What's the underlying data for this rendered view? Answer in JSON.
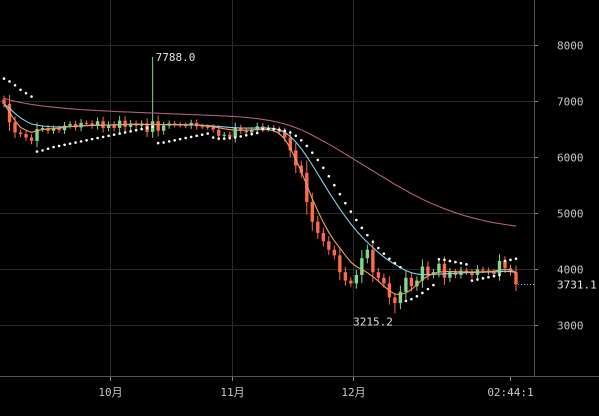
{
  "chart_data": {
    "type": "candlestick",
    "x_tick_labels": [
      "10月",
      "11月",
      "12月",
      "02:44:1"
    ],
    "y_ticks": [
      3000,
      4000,
      5000,
      6000,
      7000,
      8000
    ],
    "ylim": [
      2100,
      8800
    ],
    "annotations": {
      "high_label": "7788.0",
      "low_label": "3215.2",
      "last_price_label": "3731.1"
    },
    "last_price": 3731.1,
    "high": {
      "index": 27,
      "value": 7788.0
    },
    "low": {
      "index": 71,
      "value": 3215.2
    },
    "colors": {
      "up": "#7fd98a",
      "down": "#ff6a4d",
      "ma_fast": "#f0a060",
      "ma_mid": "#7fd6e8",
      "ma_slow": "#b0607a",
      "sar": "#ffffff",
      "grid": "#2a2a2a",
      "axis_text": "#c8c8c8"
    },
    "close_series": [
      6950,
      6620,
      6440,
      6410,
      6350,
      6290,
      6500,
      6520,
      6470,
      6510,
      6480,
      6560,
      6590,
      6530,
      6610,
      6600,
      6560,
      6640,
      6520,
      6580,
      6520,
      6650,
      6540,
      6600,
      6560,
      6600,
      6450,
      6640,
      6470,
      6560,
      6600,
      6580,
      6570,
      6560,
      6610,
      6550,
      6540,
      6530,
      6490,
      6380,
      6400,
      6360,
      6520,
      6470,
      6440,
      6480,
      6550,
      6500,
      6520,
      6490,
      6450,
      6350,
      6120,
      5850,
      5720,
      5200,
      4850,
      4650,
      4500,
      4350,
      4250,
      3950,
      3800,
      3750,
      3900,
      4200,
      4350,
      3950,
      3850,
      3750,
      3500,
      3400,
      3600,
      3850,
      3700,
      3800,
      4050,
      3900,
      3950,
      4100,
      3850,
      3950,
      3900,
      3980,
      3950,
      3900,
      4000,
      3980,
      3950,
      3920,
      4150,
      4020,
      3950,
      3731.1
    ],
    "ma_fast": [
      6950,
      6800,
      6650,
      6530,
      6480,
      6440,
      6470,
      6490,
      6500,
      6510,
      6515,
      6530,
      6545,
      6550,
      6560,
      6565,
      6568,
      6570,
      6572,
      6574,
      6576,
      6580,
      6582,
      6585,
      6586,
      6585,
      6580,
      6585,
      6580,
      6578,
      6578,
      6580,
      6580,
      6578,
      6576,
      6570,
      6562,
      6552,
      6540,
      6525,
      6505,
      6490,
      6480,
      6480,
      6480,
      6485,
      6490,
      6495,
      6490,
      6470,
      6420,
      6320,
      6160,
      5960,
      5740,
      5500,
      5260,
      5040,
      4840,
      4660,
      4510,
      4380,
      4250,
      4130,
      4050,
      4000,
      3940,
      3870,
      3790,
      3700,
      3620,
      3560,
      3550,
      3580,
      3640,
      3730,
      3820,
      3880,
      3930,
      3950,
      3960,
      3960,
      3960,
      3955,
      3955,
      3955,
      3955,
      3958,
      3960,
      3970,
      3990,
      4000,
      3990,
      3950
    ],
    "ma_mid": [
      6950,
      6870,
      6780,
      6700,
      6640,
      6590,
      6570,
      6555,
      6545,
      6540,
      6538,
      6540,
      6545,
      6550,
      6555,
      6560,
      6563,
      6566,
      6569,
      6572,
      6575,
      6578,
      6580,
      6582,
      6583,
      6584,
      6583,
      6582,
      6581,
      6580,
      6579,
      6578,
      6577,
      6576,
      6574,
      6572,
      6568,
      6562,
      6555,
      6547,
      6538,
      6530,
      6524,
      6520,
      6518,
      6518,
      6520,
      6522,
      6520,
      6510,
      6485,
      6440,
      6370,
      6270,
      6150,
      6010,
      5860,
      5700,
      5540,
      5380,
      5230,
      5080,
      4940,
      4810,
      4690,
      4580,
      4480,
      4390,
      4300,
      4220,
      4150,
      4090,
      4030,
      3980,
      3940,
      3915,
      3905,
      3905,
      3910,
      3915,
      3920,
      3925,
      3930,
      3935,
      3940,
      3945,
      3948,
      3950,
      3952,
      3955,
      3960,
      3965,
      3960,
      3945
    ],
    "ma_slow": [
      7050,
      7020,
      6995,
      6975,
      6955,
      6940,
      6925,
      6912,
      6900,
      6890,
      6880,
      6870,
      6862,
      6855,
      6848,
      6842,
      6836,
      6830,
      6825,
      6820,
      6815,
      6810,
      6806,
      6802,
      6798,
      6794,
      6790,
      6786,
      6782,
      6778,
      6774,
      6770,
      6766,
      6762,
      6758,
      6754,
      6750,
      6746,
      6742,
      6738,
      6733,
      6728,
      6722,
      6716,
      6708,
      6698,
      6686,
      6672,
      6656,
      6638,
      6616,
      6590,
      6560,
      6525,
      6485,
      6440,
      6390,
      6340,
      6285,
      6230,
      6175,
      6115,
      6055,
      5995,
      5935,
      5875,
      5815,
      5755,
      5695,
      5635,
      5575,
      5515,
      5460,
      5405,
      5350,
      5300,
      5250,
      5205,
      5160,
      5120,
      5080,
      5045,
      5010,
      4978,
      4948,
      4920,
      4895,
      4872,
      4850,
      4832,
      4815,
      4800,
      4785,
      4770
    ],
    "sar": [
      7400,
      7350,
      7280,
      7200,
      7140,
      7080,
      6100,
      6120,
      6150,
      6180,
      6200,
      6220,
      6240,
      6260,
      6280,
      6300,
      6320,
      6340,
      6360,
      6380,
      6400,
      6420,
      6440,
      6460,
      6480,
      6500,
      6520,
      6540,
      6250,
      6260,
      6280,
      6300,
      6320,
      6340,
      6360,
      6380,
      6400,
      6420,
      6350,
      6330,
      6330,
      6340,
      6350,
      6370,
      6390,
      6410,
      6430,
      6500,
      6505,
      6500,
      6490,
      6470,
      6440,
      6380,
      6300,
      6200,
      6080,
      5950,
      5810,
      5660,
      5500,
      5340,
      5180,
      5030,
      4880,
      4740,
      4610,
      4490,
      4380,
      4280,
      4190,
      4110,
      4040,
      3440,
      3470,
      3520,
      3580,
      3650,
      3720,
      4180,
      4170,
      4150,
      4130,
      4110,
      4090,
      3800,
      3820,
      3840,
      3860,
      3880,
      3900,
      4150,
      4170,
      4190
    ]
  }
}
